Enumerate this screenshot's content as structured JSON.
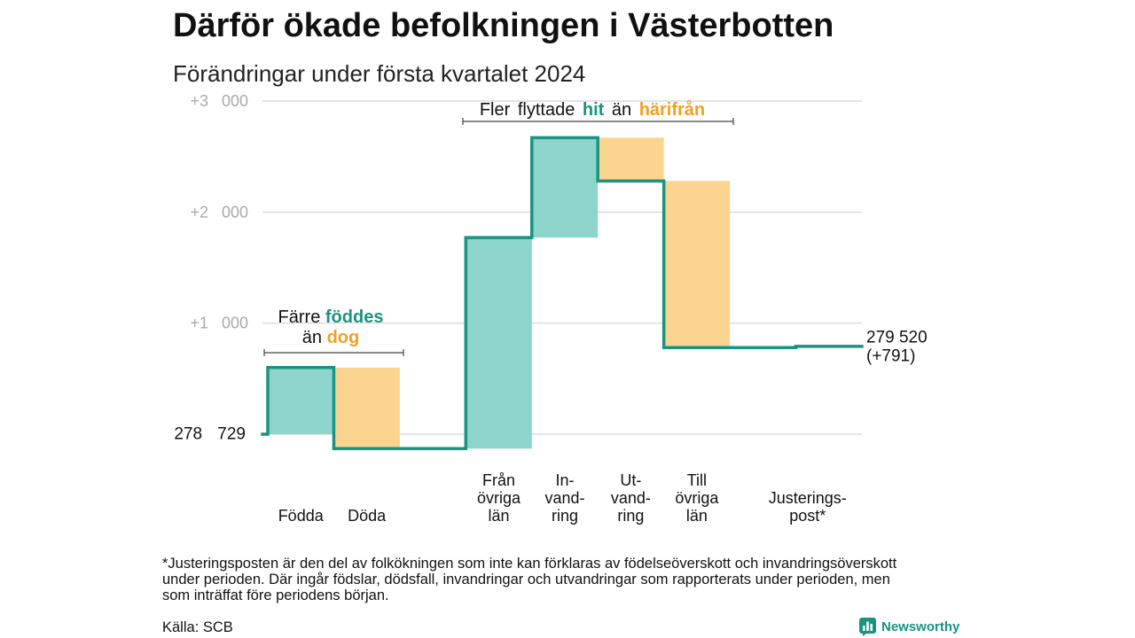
{
  "chart_data": {
    "type": "bar",
    "waterfall": true,
    "title": "Därför ökade befolkningen i Västerbotten",
    "subtitle": "Förändringar under första kvartalet 2024",
    "categories": [
      [
        "Födda"
      ],
      [
        "Döda"
      ],
      [
        "Från",
        "övriga",
        "län"
      ],
      [
        "In-",
        "vand-",
        "ring"
      ],
      [
        "Ut-",
        "vand-",
        "ring"
      ],
      [
        "Till",
        "övriga",
        "län"
      ],
      [
        "Justerings-",
        "post*"
      ]
    ],
    "values": [
      600,
      -730,
      1900,
      900,
      -390,
      -1500,
      11
    ],
    "start_value": 278729,
    "end_value": 279520,
    "start_label": "278 729",
    "end_label": "279 520",
    "end_change_label": "(+791)",
    "ylim": [
      0,
      3000
    ],
    "y_grid": [
      0,
      1000,
      2000,
      3000
    ],
    "y_ticks": [
      {
        "value": 3000,
        "label": "+3 000"
      },
      {
        "value": 2000,
        "label": "+2 000"
      },
      {
        "value": 1000,
        "label": "+1 000"
      }
    ],
    "grid": true,
    "annotations": {
      "fewer_born": {
        "w1": "Färre",
        "w2": "föddes",
        "w3": "än",
        "w4": "dog"
      },
      "more_moved": {
        "w1": "Fler flyttade",
        "w2": "hit",
        "w3": "än",
        "w4": "härifrån"
      }
    },
    "colors": {
      "increase": "#8dd5cc",
      "decrease": "#fbd48f",
      "line": "#1a9381",
      "highlight_increase": "#1a9381",
      "highlight_decrease": "#f3a024",
      "grid": "#dcdcdc",
      "tick": "#aaaaaa",
      "bracket": "#444444"
    }
  },
  "footnote_lines": [
    "*Justeringsposten är den del av folkökningen som inte kan förklaras av födelseöverskott och invandringsöverskott",
    "under perioden. Där ingår födslar, dödsfall, invandringar och utvandringar som rapporterats under perioden, men",
    "som inträffat före periodens början."
  ],
  "source": "Källa: SCB",
  "brand": {
    "name": "Newsworthy",
    "icon": "newsworthy-logo-icon",
    "color": "#1a9381"
  }
}
